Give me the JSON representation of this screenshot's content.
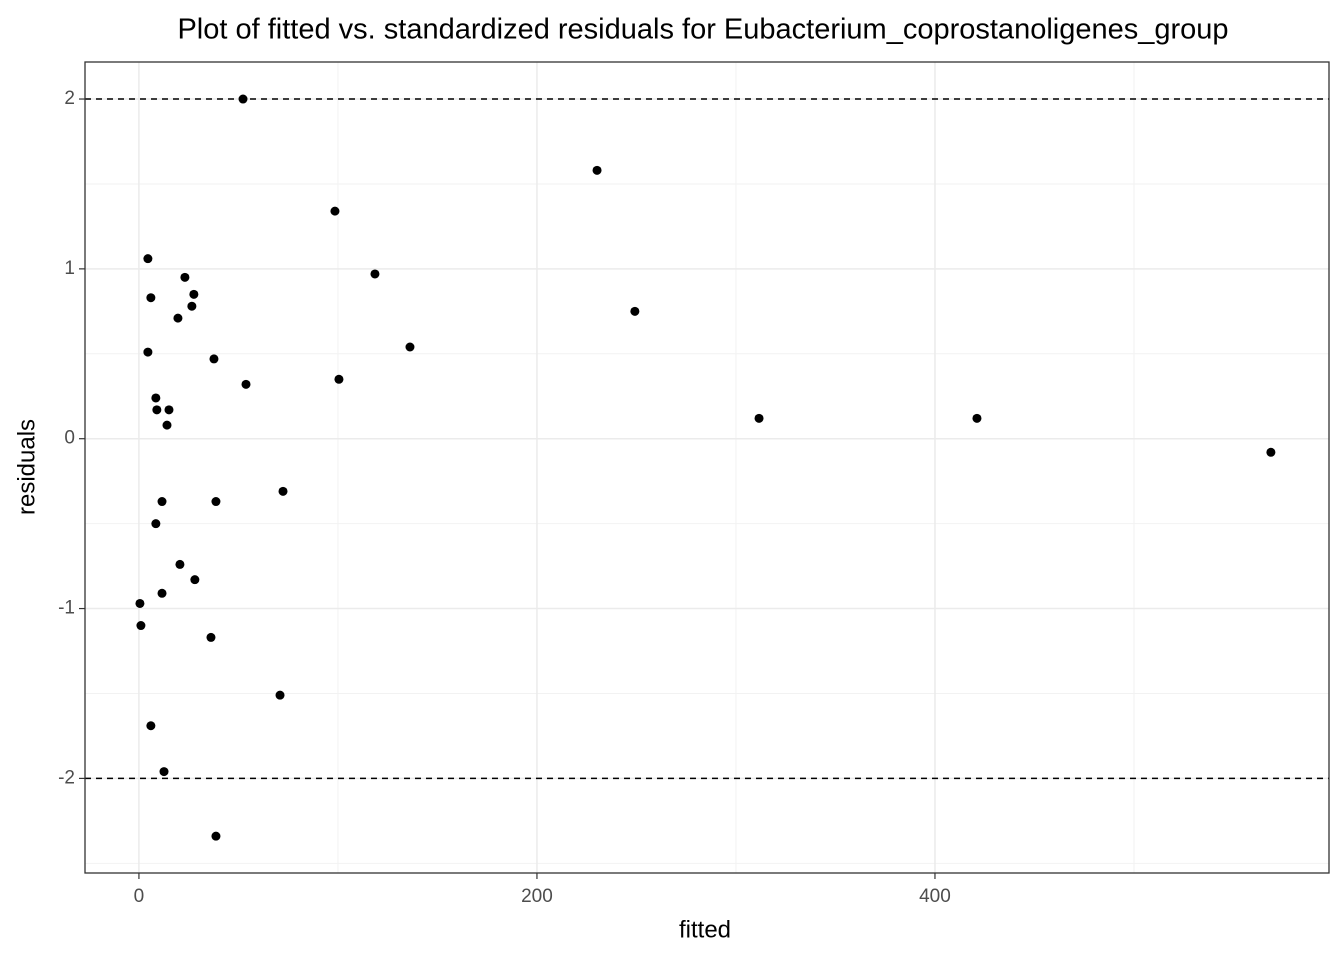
{
  "chart_data": {
    "type": "scatter",
    "title": "Plot of fitted vs. standardized residuals for Eubacterium_coprostanoligenes_group",
    "x_label": "fitted",
    "y_label": "residuals",
    "xlim": [
      -27.1,
      598
    ],
    "ylim": [
      -2.557,
      2.218
    ],
    "xticks": [
      0,
      200,
      400
    ],
    "yticks": [
      -2,
      -1,
      0,
      1,
      2
    ],
    "x_minor_grid": [
      100,
      300,
      500
    ],
    "y_minor_grid": [
      -2.5,
      -1.5,
      -0.5,
      0.5,
      1.5
    ],
    "grid": true,
    "hlines": [
      2,
      -2
    ],
    "color": "#000000",
    "x": [
      52.3,
      230.2,
      98.5,
      4.5,
      118.6,
      23.1,
      27.6,
      6.0,
      26.6,
      249.2,
      19.6,
      136.2,
      4.5,
      37.7,
      100.5,
      53.8,
      8.5,
      9.0,
      15.1,
      311.6,
      421.1,
      14.1,
      568.8,
      72.4,
      11.6,
      38.7,
      8.5,
      20.6,
      28.1,
      11.6,
      0.5,
      1.0,
      36.2,
      70.9,
      6.0,
      12.6,
      38.7
    ],
    "values": [
      2.0,
      1.58,
      1.34,
      1.06,
      0.97,
      0.95,
      0.85,
      0.83,
      0.78,
      0.75,
      0.71,
      0.54,
      0.51,
      0.47,
      0.35,
      0.32,
      0.24,
      0.17,
      0.17,
      0.12,
      0.12,
      0.08,
      -0.08,
      -0.31,
      -0.37,
      -0.37,
      -0.5,
      -0.74,
      -0.83,
      -0.91,
      -0.97,
      -1.1,
      -1.17,
      -1.51,
      -1.69,
      -1.96,
      -2.34
    ]
  }
}
